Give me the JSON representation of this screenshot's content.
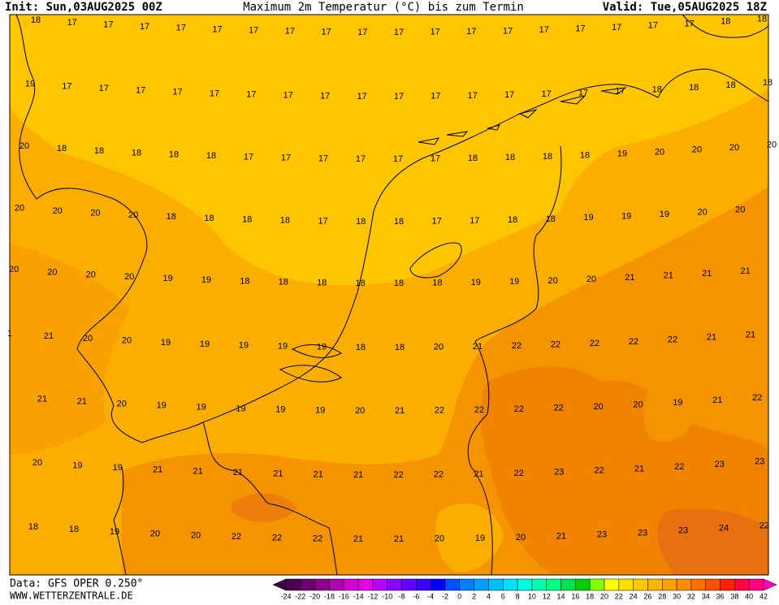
{
  "header": {
    "init": "Init: Sun,03AUG2025 00Z",
    "title": "Maximum 2m Temperatur (°C) bis zum Termin",
    "valid": "Valid: Tue,05AUG2025 18Z"
  },
  "map": {
    "rows": [
      [
        18,
        17,
        17,
        17,
        17,
        17,
        17,
        17,
        17,
        17,
        17,
        17,
        17,
        17,
        17,
        17,
        17,
        17,
        17,
        18,
        18
      ],
      [
        19,
        17,
        17,
        17,
        17,
        17,
        17,
        17,
        17,
        17,
        17,
        17,
        17,
        17,
        17,
        17,
        17,
        18,
        18,
        18,
        18
      ],
      [
        20,
        18,
        18,
        18,
        18,
        18,
        17,
        17,
        17,
        17,
        17,
        17,
        18,
        18,
        18,
        18,
        19,
        20,
        20,
        20,
        20
      ],
      [
        20,
        20,
        20,
        20,
        18,
        18,
        18,
        18,
        17,
        18,
        18,
        17,
        17,
        18,
        18,
        19,
        19,
        19,
        20,
        20
      ],
      [
        20,
        20,
        20,
        20,
        19,
        19,
        18,
        18,
        18,
        18,
        18,
        18,
        19,
        19,
        20,
        20,
        21,
        21,
        21,
        21
      ],
      [
        1,
        21,
        20,
        20,
        19,
        19,
        19,
        19,
        19,
        18,
        18,
        20,
        21,
        22,
        22,
        22,
        22,
        22,
        21,
        21
      ],
      [
        21,
        21,
        20,
        19,
        19,
        19,
        19,
        19,
        20,
        21,
        22,
        22,
        22,
        22,
        20,
        20,
        19,
        21,
        22
      ],
      [
        20,
        19,
        19,
        21,
        21,
        21,
        21,
        21,
        21,
        22,
        22,
        21,
        22,
        23,
        22,
        21,
        22,
        23,
        23
      ],
      [
        18,
        18,
        19,
        20,
        20,
        22,
        22,
        22,
        21,
        21,
        20,
        19,
        20,
        21,
        23,
        23,
        23,
        24,
        22
      ]
    ]
  },
  "colorbar": {
    "ticks": [
      -24,
      -22,
      -20,
      -18,
      -16,
      -14,
      -12,
      -10,
      -8,
      -6,
      -4,
      -2,
      0,
      2,
      4,
      6,
      8,
      10,
      12,
      14,
      16,
      18,
      20,
      22,
      24,
      26,
      28,
      30,
      32,
      34,
      36,
      38,
      40,
      42
    ]
  },
  "footer": {
    "data": "Data: GFS OPER 0.250°",
    "site": "WWW.WETTERZENTRALE.DE"
  }
}
